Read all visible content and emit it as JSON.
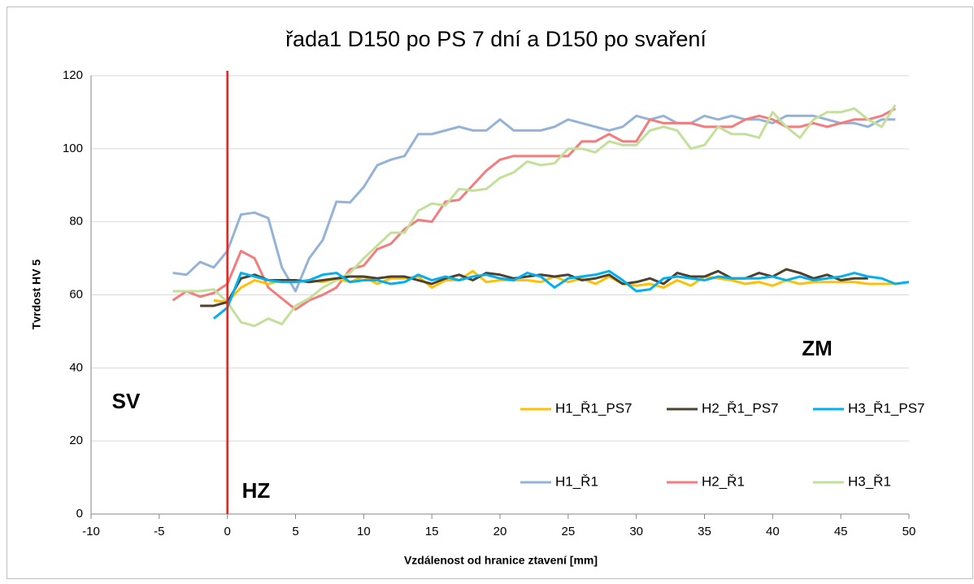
{
  "chart_data": {
    "type": "line",
    "title": "řada1 D150 po PS 7 dní a D150 po svaření",
    "x_label": "Vzdálenost od hranice ztavení [mm]",
    "y_label": "Tvrdost HV 5",
    "xlim": [
      -10,
      50
    ],
    "xticks": [
      -10,
      -5,
      0,
      5,
      10,
      15,
      20,
      25,
      30,
      35,
      40,
      45,
      50
    ],
    "ylim": [
      0,
      120
    ],
    "yticks": [
      0,
      20,
      40,
      60,
      80,
      100,
      120
    ],
    "grid": true,
    "vline": {
      "x": 0,
      "color": "#e3221c"
    },
    "annotations": [
      "SV",
      "HZ",
      "ZM"
    ],
    "series": [
      {
        "name": "H1_Ř1_PS7",
        "color": "#ffc000",
        "x": [
          -1,
          0,
          1,
          2,
          3,
          4,
          5,
          6,
          7,
          8,
          9,
          10,
          11,
          12,
          13,
          14,
          15,
          16,
          17,
          18,
          19,
          20,
          21,
          22,
          23,
          24,
          25,
          26,
          27,
          28,
          29,
          30,
          31,
          32,
          33,
          34,
          35,
          36,
          37,
          38,
          39,
          40,
          41,
          42,
          43,
          44,
          45,
          46,
          47,
          48,
          49
        ],
        "values": [
          58.5,
          58,
          62,
          64,
          63,
          64,
          63.5,
          64,
          63.5,
          64.5,
          63.5,
          65,
          63,
          64.5,
          64.5,
          65,
          62,
          64,
          64,
          66.5,
          63.5,
          64,
          64,
          64,
          63.5,
          65,
          63.5,
          64.5,
          63,
          65,
          63,
          62.5,
          63,
          62,
          64,
          62.5,
          65,
          64.5,
          64,
          63,
          63.5,
          62.5,
          64,
          63,
          63.5,
          63.5,
          63.5,
          63.5,
          63,
          63,
          63
        ]
      },
      {
        "name": "H2_Ř1_PS7",
        "color": "#4d4230",
        "x": [
          -2,
          -1,
          0,
          1,
          2,
          3,
          4,
          5,
          6,
          7,
          8,
          9,
          10,
          11,
          12,
          13,
          14,
          15,
          16,
          17,
          18,
          19,
          20,
          21,
          22,
          23,
          24,
          25,
          26,
          27,
          28,
          29,
          30,
          31,
          32,
          33,
          34,
          35,
          36,
          37,
          38,
          39,
          40,
          41,
          42,
          43,
          44,
          45,
          46,
          47
        ],
        "values": [
          57,
          57,
          58,
          64.5,
          65.5,
          64,
          64,
          64,
          63.5,
          64,
          64.5,
          65,
          65,
          64.5,
          65,
          65,
          64,
          63,
          64.5,
          65.5,
          64,
          66,
          65.5,
          64.5,
          65,
          65.5,
          65,
          65.5,
          64,
          64.5,
          65.5,
          63,
          63.5,
          64.5,
          63,
          66,
          65,
          65,
          66.5,
          64.5,
          64.5,
          66,
          65,
          67,
          66,
          64.5,
          65.5,
          64,
          64.5,
          64.5
        ]
      },
      {
        "name": "H3_Ř1_PS7",
        "color": "#00b0f0",
        "x": [
          -1,
          0,
          1,
          2,
          3,
          4,
          5,
          6,
          7,
          8,
          9,
          10,
          11,
          12,
          13,
          14,
          15,
          16,
          17,
          18,
          19,
          20,
          21,
          22,
          23,
          24,
          25,
          26,
          27,
          28,
          29,
          30,
          31,
          32,
          33,
          34,
          35,
          36,
          37,
          38,
          39,
          40,
          41,
          42,
          43,
          44,
          45,
          46,
          47,
          48,
          49,
          50
        ],
        "values": [
          53.5,
          56.5,
          66,
          65,
          64,
          63.5,
          63.5,
          64,
          65.5,
          66,
          63.5,
          64,
          64,
          63,
          63.5,
          65.5,
          64,
          65,
          64,
          65,
          65.5,
          64.5,
          64,
          66,
          65,
          62,
          64.5,
          65,
          65.5,
          66.5,
          64,
          61,
          61.5,
          64.5,
          65,
          64.5,
          64,
          65,
          64.5,
          64.5,
          64.5,
          65,
          64,
          65,
          64,
          64.5,
          65,
          66,
          65,
          64.5,
          63,
          63.5
        ]
      },
      {
        "name": "H1_Ř1",
        "color": "#95b3d7",
        "x": [
          -4,
          -3,
          -2,
          -1,
          0,
          1,
          2,
          3,
          4,
          5,
          6,
          7,
          8,
          9,
          10,
          11,
          12,
          13,
          14,
          15,
          16,
          17,
          18,
          19,
          20,
          21,
          22,
          23,
          24,
          25,
          26,
          27,
          28,
          29,
          30,
          31,
          32,
          33,
          34,
          35,
          36,
          37,
          38,
          39,
          40,
          41,
          42,
          43,
          44,
          45,
          46,
          47,
          48,
          49
        ],
        "values": [
          66,
          65.5,
          69,
          67.5,
          72,
          82,
          82.5,
          81,
          67.5,
          61,
          70,
          75,
          85.5,
          85.3,
          89.5,
          95.5,
          97,
          98,
          104,
          104,
          105,
          106,
          105,
          105,
          108,
          105,
          105,
          105,
          106,
          108,
          107,
          106,
          105,
          106,
          109,
          108,
          109,
          107,
          107,
          109,
          108,
          109,
          108,
          108,
          107,
          109,
          109,
          109,
          108,
          107,
          107,
          106,
          108,
          108
        ]
      },
      {
        "name": "H2_Ř1",
        "color": "#f47c7c",
        "x": [
          -4,
          -3,
          -2,
          -1,
          0,
          1,
          2,
          3,
          4,
          5,
          6,
          7,
          8,
          9,
          10,
          11,
          12,
          13,
          14,
          15,
          16,
          17,
          18,
          19,
          20,
          21,
          22,
          23,
          24,
          25,
          26,
          27,
          28,
          29,
          30,
          31,
          32,
          33,
          34,
          35,
          36,
          37,
          38,
          39,
          40,
          41,
          42,
          43,
          44,
          45,
          46,
          47,
          48,
          49
        ],
        "values": [
          58.5,
          61,
          59.5,
          60.5,
          63,
          72,
          70,
          62,
          59,
          56,
          58.5,
          60,
          62,
          67,
          68,
          72.5,
          74,
          78,
          80.5,
          80,
          85.5,
          86,
          90,
          94,
          97,
          98,
          98,
          98,
          98,
          98,
          102,
          102,
          104,
          102,
          102,
          108,
          107,
          107,
          107,
          106,
          106,
          106,
          108,
          109,
          108,
          106,
          106,
          107,
          106,
          107,
          108,
          108,
          109,
          111
        ]
      },
      {
        "name": "H3_Ř1",
        "color": "#c3e09a",
        "x": [
          -4,
          -3,
          -2,
          -1,
          0,
          1,
          2,
          3,
          4,
          5,
          6,
          7,
          8,
          9,
          10,
          11,
          12,
          13,
          14,
          15,
          16,
          17,
          18,
          19,
          20,
          21,
          22,
          23,
          24,
          25,
          26,
          27,
          28,
          29,
          30,
          31,
          32,
          33,
          34,
          35,
          36,
          37,
          38,
          39,
          40,
          41,
          42,
          43,
          44,
          45,
          46,
          47,
          48,
          49
        ],
        "values": [
          61,
          61,
          61,
          61.5,
          58,
          52.5,
          51.5,
          53.5,
          52,
          57,
          59,
          62,
          64,
          66,
          70,
          73.5,
          77,
          77,
          83,
          85,
          84.5,
          89,
          88.5,
          89,
          92,
          93.5,
          96.5,
          95.5,
          96,
          100,
          100,
          99,
          102,
          101,
          101,
          105,
          106,
          105,
          100,
          101,
          106,
          104,
          104,
          103,
          110,
          106,
          103,
          108,
          110,
          110,
          111,
          108,
          106,
          112
        ]
      }
    ]
  }
}
